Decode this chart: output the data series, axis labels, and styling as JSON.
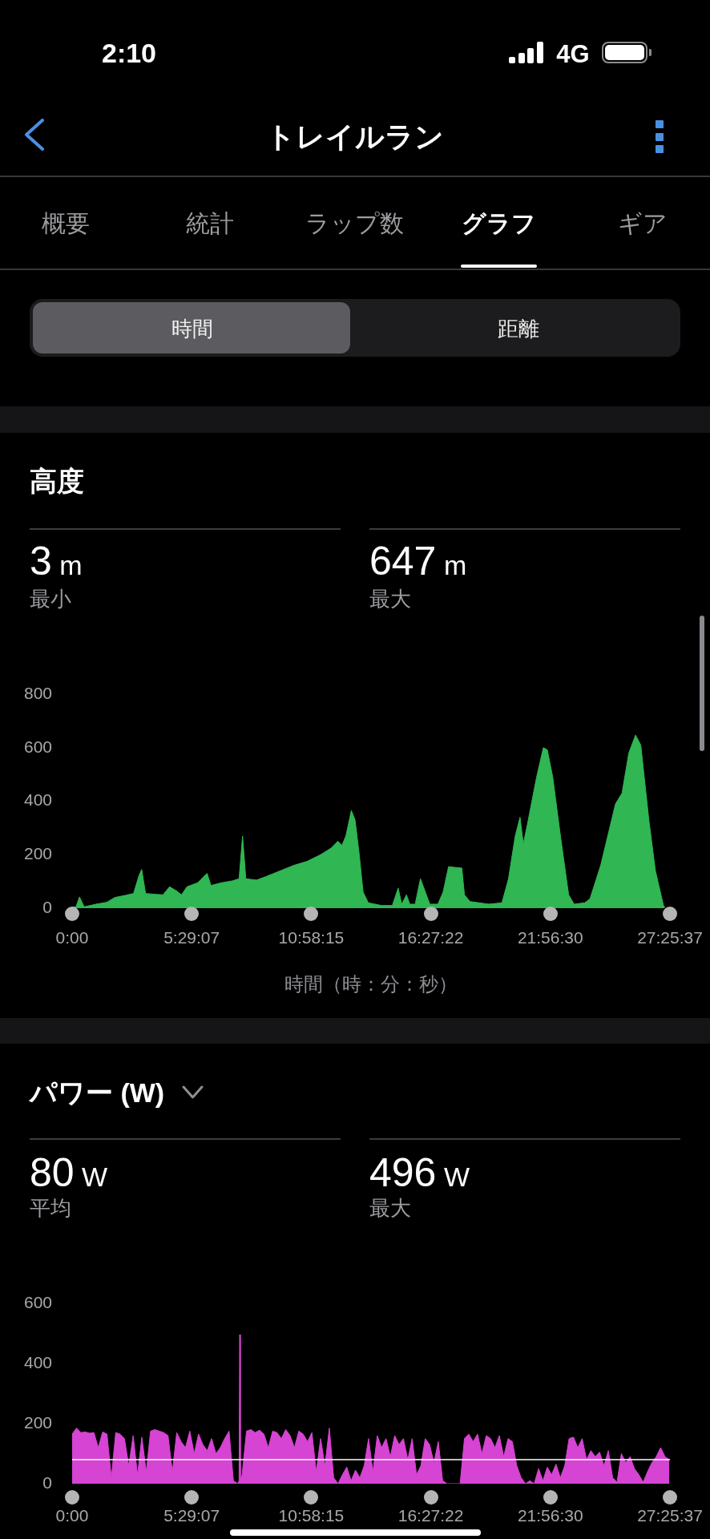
{
  "chart_data": [
    {
      "type": "other",
      "title": "トレイルラン",
      "annotations": [
        "2:10",
        "4G",
        "概要",
        "統計",
        "ラップ数",
        "グラフ",
        "ギア",
        "時間",
        "距離"
      ]
    },
    {
      "type": "area",
      "title": "高度",
      "annotations": [
        "3 m",
        "最小",
        "647 m",
        "最大"
      ],
      "xlabel": "時間（時：分：秒）",
      "x": [
        0,
        0.18,
        0.34,
        0.55,
        1.1,
        1.59,
        1.96,
        2.45,
        2.82,
        3.06,
        3.19,
        3.37,
        3.8,
        4.17,
        4.47,
        4.78,
        5.02,
        5.27,
        5.76,
        6.19,
        6.37,
        6.86,
        7.35,
        7.66,
        7.82,
        7.97,
        8.46,
        8.95,
        9.56,
        10.17,
        10.78,
        11.4,
        11.89,
        12.19,
        12.38,
        12.56,
        12.81,
        12.98,
        13.16,
        13.35,
        13.59,
        14.2,
        14.69,
        14.96,
        15.12,
        15.34,
        15.49,
        15.74,
        15.98,
        16.41,
        16.78,
        17.02,
        17.27,
        17.88,
        18,
        18.25,
        19.11,
        19.72,
        20.02,
        20.33,
        20.55,
        20.7,
        20.88,
        21.31,
        21.62,
        21.8,
        22.05,
        22.42,
        22.78,
        23.03,
        23.52,
        23.76,
        24.25,
        24.93,
        25.23,
        25.54,
        25.85,
        26.09,
        26.46,
        26.76,
        27.13,
        27.19
      ],
      "values": [
        3,
        5,
        42,
        5,
        15,
        22,
        40,
        48,
        55,
        120,
        145,
        55,
        52,
        50,
        80,
        65,
        50,
        80,
        95,
        130,
        85,
        95,
        102,
        110,
        270,
        110,
        105,
        120,
        140,
        160,
        175,
        200,
        225,
        250,
        235,
        270,
        365,
        330,
        210,
        60,
        20,
        10,
        10,
        75,
        15,
        50,
        15,
        15,
        110,
        15,
        15,
        60,
        155,
        150,
        50,
        25,
        15,
        20,
        110,
        270,
        340,
        240,
        310,
        490,
        600,
        592,
        490,
        260,
        50,
        15,
        20,
        35,
        160,
        390,
        430,
        580,
        647,
        610,
        330,
        140,
        10,
        3
      ],
      "color": "#30b653",
      "xlim": [
        0,
        27.42694
      ],
      "xticks": [
        {
          "value": 0,
          "label": "0:00"
        },
        {
          "value": 5.48528,
          "label": "5:29:07"
        },
        {
          "value": 10.97083,
          "label": "10:58:15"
        },
        {
          "value": 16.45611,
          "label": "16:27:22"
        },
        {
          "value": 21.94167,
          "label": "21:56:30"
        },
        {
          "value": 27.42694,
          "label": "27:25:37"
        }
      ],
      "ylim": [
        0,
        800
      ],
      "yticks": [
        0,
        200,
        400,
        600,
        800
      ]
    },
    {
      "type": "area",
      "title": "パワー (W)",
      "annotations": [
        "80 W",
        "平均",
        "496 W",
        "最大"
      ],
      "x": [
        0,
        0.2,
        0.4,
        0.6,
        0.8,
        1,
        1.2,
        1.4,
        1.6,
        1.8,
        2,
        2.2,
        2.4,
        2.6,
        2.8,
        3,
        3.2,
        3.4,
        3.6,
        3.8,
        4,
        4.2,
        4.4,
        4.6,
        4.8,
        5,
        5.2,
        5.4,
        5.6,
        5.8,
        6,
        6.2,
        6.4,
        6.6,
        6.8,
        7,
        7.2,
        7.4,
        7.6,
        7.66,
        7.69,
        7.72,
        7.8,
        8,
        8.2,
        8.4,
        8.6,
        8.8,
        9,
        9.2,
        9.4,
        9.6,
        9.8,
        10,
        10.2,
        10.4,
        10.6,
        10.8,
        11,
        11.2,
        11.4,
        11.6,
        11.8,
        12,
        12.2,
        12.4,
        12.6,
        12.8,
        13,
        13.2,
        13.4,
        13.6,
        13.8,
        14,
        14.2,
        14.4,
        14.6,
        14.8,
        15,
        15.2,
        15.4,
        15.6,
        15.8,
        16,
        16.2,
        16.4,
        16.6,
        16.8,
        17,
        17.2,
        17.4,
        17.6,
        17.8,
        18,
        18.2,
        18.4,
        18.6,
        18.8,
        19,
        19.2,
        19.4,
        19.6,
        19.8,
        20,
        20.2,
        20.4,
        20.6,
        20.8,
        21,
        21.2,
        21.4,
        21.6,
        21.8,
        22,
        22.2,
        22.4,
        22.6,
        22.8,
        23,
        23.2,
        23.4,
        23.6,
        23.8,
        24,
        24.2,
        24.4,
        24.6,
        24.8,
        25,
        25.2,
        25.4,
        25.6,
        25.8,
        26,
        26.2,
        26.4,
        26.6,
        26.8,
        27,
        27.2,
        27.4
      ],
      "values": [
        165,
        185,
        170,
        172,
        168,
        170,
        120,
        172,
        165,
        20,
        170,
        165,
        150,
        60,
        160,
        30,
        155,
        40,
        175,
        180,
        175,
        170,
        160,
        40,
        170,
        140,
        120,
        175,
        100,
        165,
        130,
        110,
        150,
        100,
        120,
        150,
        175,
        10,
        0,
        10,
        496,
        10,
        30,
        175,
        180,
        170,
        178,
        165,
        120,
        175,
        170,
        150,
        180,
        160,
        120,
        175,
        165,
        140,
        170,
        40,
        150,
        60,
        185,
        20,
        0,
        30,
        55,
        10,
        45,
        20,
        60,
        150,
        40,
        160,
        120,
        150,
        90,
        160,
        130,
        150,
        80,
        150,
        30,
        60,
        150,
        130,
        70,
        140,
        10,
        0,
        0,
        0,
        0,
        150,
        165,
        140,
        165,
        100,
        160,
        150,
        120,
        160,
        90,
        150,
        140,
        60,
        20,
        0,
        10,
        0,
        50,
        10,
        55,
        30,
        65,
        20,
        60,
        150,
        155,
        120,
        150,
        80,
        110,
        90,
        105,
        60,
        110,
        20,
        5,
        100,
        70,
        90,
        50,
        30,
        5,
        40,
        70,
        90,
        120,
        90,
        80
      ],
      "color": "#d644d3",
      "xlim": [
        0,
        27.42694
      ],
      "xticks": [
        {
          "value": 0,
          "label": "0:00"
        },
        {
          "value": 5.48528,
          "label": "5:29:07"
        },
        {
          "value": 10.97083,
          "label": "10:58:15"
        },
        {
          "value": 16.45611,
          "label": "16:27:22"
        },
        {
          "value": 21.94167,
          "label": "21:56:30"
        },
        {
          "value": 27.42694,
          "label": "27:25:37"
        }
      ],
      "ylim": [
        0,
        600
      ],
      "yticks": [
        0,
        200,
        400,
        600
      ],
      "ref_lines": [
        {
          "axis": "y",
          "value": 80,
          "color": "#ffffff"
        }
      ]
    }
  ]
}
